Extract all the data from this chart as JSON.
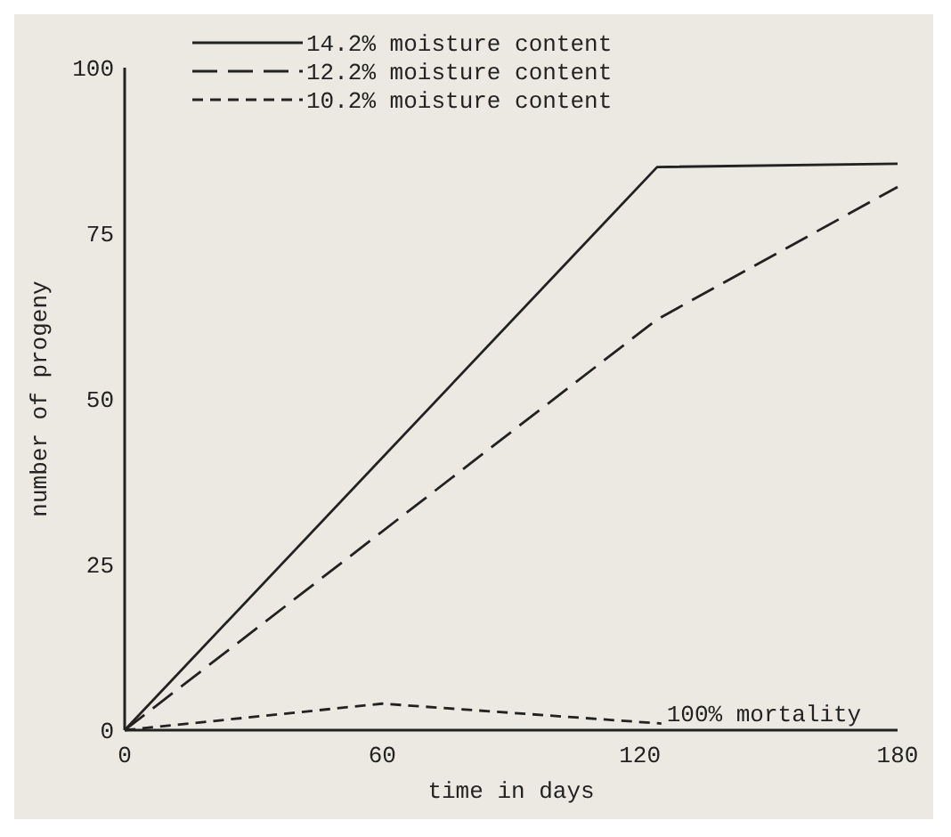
{
  "chart_data": {
    "type": "line",
    "xlabel": "time in days",
    "ylabel": "number of progeny",
    "xlim": [
      0,
      180
    ],
    "ylim": [
      0,
      100
    ],
    "xticks": [
      0,
      60,
      120,
      180
    ],
    "yticks": [
      0,
      25,
      50,
      75,
      100
    ],
    "grid": false,
    "legend": "top left",
    "marker": "none",
    "series": [
      {
        "name": "14.2% moisture content",
        "color": "#222222",
        "line_style": "solid",
        "x": [
          0,
          124,
          180
        ],
        "values": [
          0,
          85,
          85.5
        ]
      },
      {
        "name": "12.2% moisture content",
        "color": "#222222",
        "line_style": "dashed",
        "x": [
          0,
          124,
          180
        ],
        "values": [
          0,
          62,
          82
        ]
      },
      {
        "name": "10.2% moisture content",
        "color": "#222222",
        "line_style": "dotted",
        "x": [
          0,
          60,
          125
        ],
        "values": [
          0,
          4,
          1
        ]
      }
    ],
    "annotations": [
      {
        "text": "100% mortality",
        "x": 125,
        "y": 1
      }
    ]
  }
}
